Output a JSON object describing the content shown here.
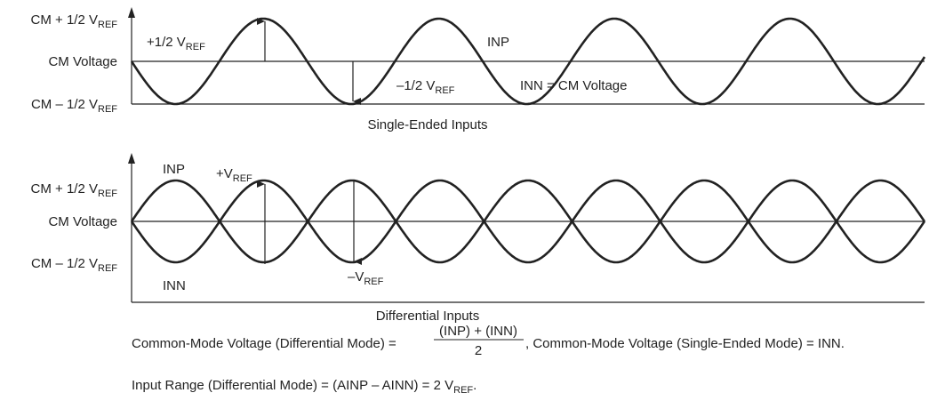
{
  "single_ended": {
    "y_labels": [
      {
        "text": "CM + 1/2 V",
        "sub": "REF"
      },
      {
        "text": "CM Voltage"
      },
      {
        "text": "CM – 1/2 V",
        "sub": "REF"
      }
    ],
    "annotations": [
      {
        "text": "+1/2 V",
        "sub": "REF"
      },
      {
        "text": "INP"
      },
      {
        "text": "–1/2 V",
        "sub": "REF"
      },
      {
        "text": "INN = CM Voltage"
      }
    ],
    "caption": "Single-Ended Inputs"
  },
  "differential": {
    "y_labels": [
      {
        "text": "CM + 1/2 V",
        "sub": "REF"
      },
      {
        "text": "CM Voltage"
      },
      {
        "text": "CM – 1/2 V",
        "sub": "REF"
      }
    ],
    "annotations": [
      {
        "text": "INP"
      },
      {
        "text": "+V",
        "sub": "REF"
      },
      {
        "text": "INN"
      },
      {
        "text": "–V",
        "sub": "REF"
      }
    ],
    "caption": "Differential Inputs"
  },
  "formulas": {
    "line1": {
      "prefix": "Common-Mode Voltage (Differential Mode) =",
      "numerator": "(INP) + (INN)",
      "denominator": "2",
      "suffix": ", Common-Mode Voltage (Single-Ended Mode) = INN."
    },
    "line2": {
      "text": "Input Range (Differential Mode) = (AINP – AINN) = 2 V",
      "sub": "REF",
      "end": "."
    }
  }
}
